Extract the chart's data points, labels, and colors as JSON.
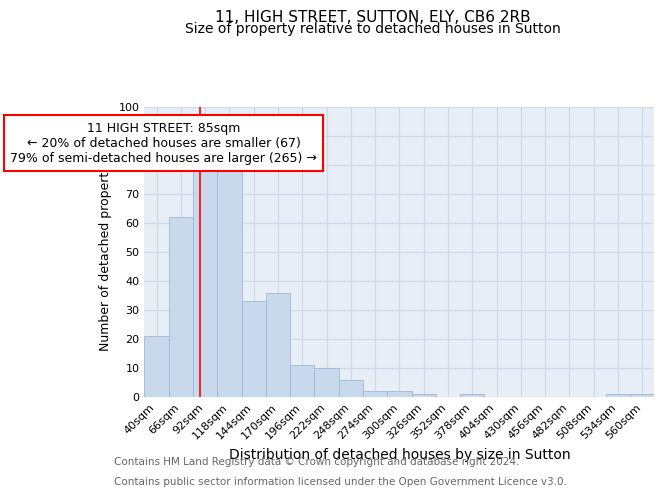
{
  "title": "11, HIGH STREET, SUTTON, ELY, CB6 2RB",
  "subtitle": "Size of property relative to detached houses in Sutton",
  "xlabel": "Distribution of detached houses by size in Sutton",
  "ylabel": "Number of detached properties",
  "bar_color": "#c8d9ec",
  "bar_edge_color": "#a0b8d8",
  "background_color": "#e8eef6",
  "grid_color": "#d0d8e8",
  "categories": [
    "40sqm",
    "66sqm",
    "92sqm",
    "118sqm",
    "144sqm",
    "170sqm",
    "196sqm",
    "222sqm",
    "248sqm",
    "274sqm",
    "300sqm",
    "326sqm",
    "352sqm",
    "378sqm",
    "404sqm",
    "430sqm",
    "456sqm",
    "482sqm",
    "508sqm",
    "534sqm",
    "560sqm"
  ],
  "values": [
    21,
    62,
    78,
    79,
    33,
    36,
    11,
    10,
    6,
    2,
    2,
    1,
    0,
    1,
    0,
    0,
    0,
    0,
    0,
    1,
    1
  ],
  "ylim": [
    0,
    100
  ],
  "yticks": [
    0,
    10,
    20,
    30,
    40,
    50,
    60,
    70,
    80,
    90,
    100
  ],
  "property_label": "11 HIGH STREET: 85sqm",
  "annotation_line1": "← 20% of detached houses are smaller (67)",
  "annotation_line2": "79% of semi-detached houses are larger (265) →",
  "vline_x_index": 1.77,
  "footer_line1": "Contains HM Land Registry data © Crown copyright and database right 2024.",
  "footer_line2": "Contains public sector information licensed under the Open Government Licence v3.0.",
  "title_fontsize": 11,
  "subtitle_fontsize": 10,
  "xlabel_fontsize": 10,
  "ylabel_fontsize": 9,
  "tick_fontsize": 8,
  "annotation_fontsize": 9,
  "footer_fontsize": 7.5
}
